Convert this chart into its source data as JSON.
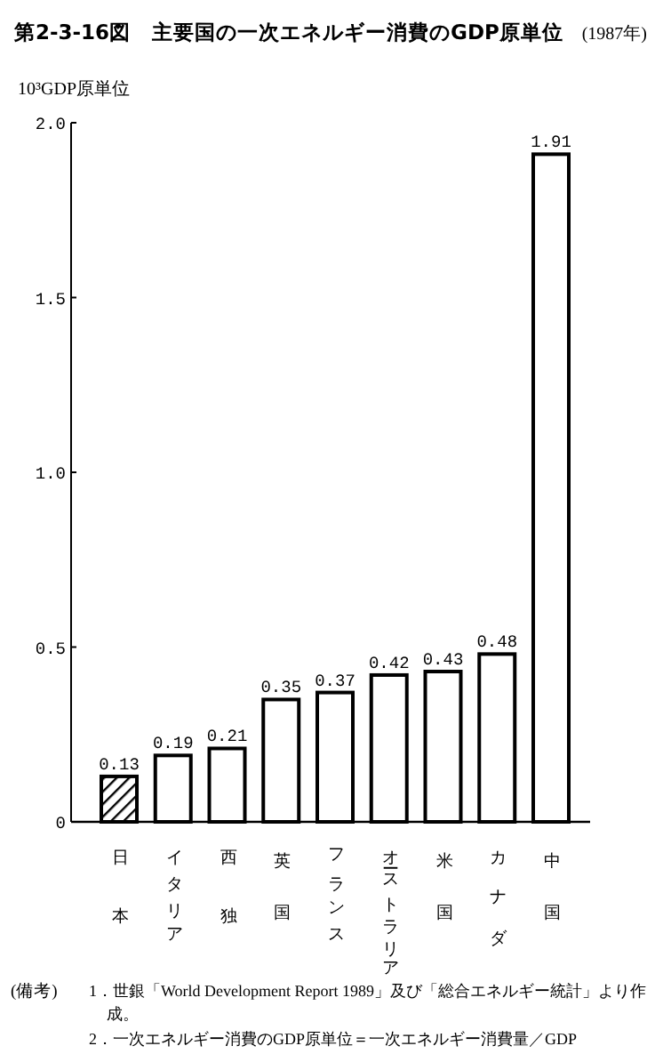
{
  "chart_data": {
    "type": "bar",
    "title": "第2-3-16図　主要国の一次エネルギー消費のGDP原単位",
    "subtitle": "(1987年)",
    "ylabel": "10³GDP原単位",
    "categories": [
      "日本",
      "イタリア",
      "西独",
      "英国",
      "フランス",
      "オーストラリア",
      "米国",
      "カナダ",
      "中国"
    ],
    "values": [
      0.13,
      0.19,
      0.21,
      0.35,
      0.37,
      0.42,
      0.43,
      0.48,
      1.91
    ],
    "colors": [
      "#000000",
      "#ffffff",
      "#ffffff",
      "#ffffff",
      "#ffffff",
      "#ffffff",
      "#ffffff",
      "#ffffff",
      "#ffffff"
    ],
    "data_labels": true,
    "ylim": [
      0,
      2.0
    ],
    "yticks": [
      0,
      {
        "value": 0.5,
        "label": "0.5"
      },
      {
        "value": 1.0,
        "label": "1.0"
      },
      {
        "value": 1.5,
        "label": "1.5"
      },
      {
        "value": 2.0,
        "label": "2.0"
      }
    ],
    "grid": false,
    "annotations": [
      "(備考)",
      "1．世銀「World Development Report 1989」及び「総合エネルギー統計」より作成。",
      "2．一次エネルギー消費のGDP原単位＝一次エネルギー消費量／GDP"
    ]
  }
}
